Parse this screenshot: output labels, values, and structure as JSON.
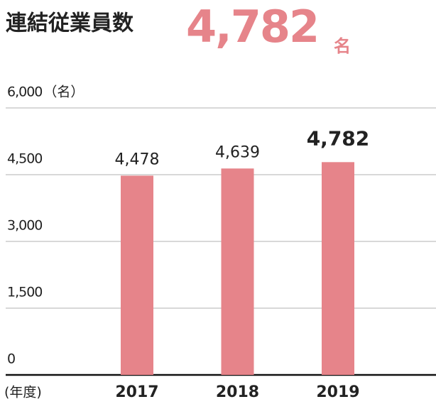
{
  "chart_data": {
    "type": "bar",
    "title": "連結従業員数",
    "headline_value": "4,782",
    "headline_unit": "名",
    "y_unit": "（名）",
    "x_label": "(年度)",
    "categories": [
      "2017",
      "2018",
      "2019"
    ],
    "values": [
      4478,
      4639,
      4782
    ],
    "value_labels": [
      "4,478",
      "4,639",
      "4,782"
    ],
    "color": "#e6848a",
    "ylim": [
      0,
      6000
    ],
    "yticks": [
      0,
      {
        "value": 1500,
        "label": "1,500"
      },
      {
        "value": 3000,
        "label": "3,000"
      },
      {
        "value": 4500,
        "label": "4,500"
      },
      {
        "value": 6000,
        "label": "6,000"
      }
    ],
    "grid": true
  }
}
